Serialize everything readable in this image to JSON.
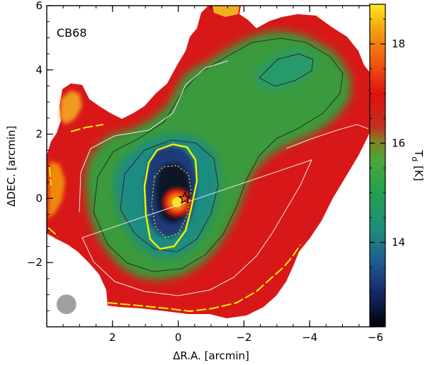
{
  "chart_data": {
    "type": "heatmap",
    "title": "",
    "annotation": "CB68",
    "xlabel": "ΔR.A. [arcmin]",
    "ylabel": "ΔDEC. [arcmin]",
    "colorbar_label": "T_d [K]",
    "colorbar_title": "T",
    "colorbar_subscript": "d",
    "colorbar_unit": "[K]",
    "xlim": [
      4.0,
      -6.0
    ],
    "ylim": [
      -4.0,
      6.0
    ],
    "x_ticks": [
      2,
      0,
      -2,
      -4,
      -6
    ],
    "x_tick_labels": [
      "2",
      "0",
      "−2",
      "−4",
      "−6"
    ],
    "y_ticks": [
      -2,
      0,
      2,
      4,
      6
    ],
    "y_tick_labels": [
      "−2",
      "0",
      "2",
      "4",
      "6"
    ],
    "colorbar_range": [
      12.3,
      18.8
    ],
    "colorbar_ticks": [
      14,
      16,
      18
    ],
    "colorbar_tick_labels": [
      "14",
      "16",
      "18"
    ],
    "colormap": [
      "#000000",
      "#1a2f6e",
      "#1e6a8a",
      "#1f8c7a",
      "#2aa050",
      "#55a830",
      "#b04020",
      "#e01010",
      "#f06010",
      "#f0a010",
      "#ffe020"
    ],
    "source_marker": {
      "x": -0.2,
      "y": 0.0,
      "symbol": "star"
    },
    "beam": {
      "x": 3.4,
      "y": -3.3,
      "diameter_arcmin": 0.6,
      "color": "#a0a0a0"
    },
    "map_samples": [
      {
        "x": -0.2,
        "y": 0.0,
        "T": 18.5
      },
      {
        "x": -0.2,
        "y": 0.7,
        "T": 12.6
      },
      {
        "x": 0.0,
        "y": 1.5,
        "T": 13.0
      },
      {
        "x": -1.0,
        "y": 1.0,
        "T": 14.0
      },
      {
        "x": -2.5,
        "y": 3.0,
        "T": 15.0
      },
      {
        "x": -3.8,
        "y": 4.2,
        "T": 14.6
      },
      {
        "x": -1.5,
        "y": 0.3,
        "T": 14.8
      },
      {
        "x": 2.5,
        "y": 0.0,
        "T": 16.5
      },
      {
        "x": 3.5,
        "y": 2.3,
        "T": 17.5
      },
      {
        "x": 1.5,
        "y": -3.0,
        "T": 16.8
      },
      {
        "x": -3.0,
        "y": -1.5,
        "T": 17.0
      },
      {
        "x": -2.0,
        "y": 5.8,
        "T": 17.5
      }
    ],
    "contours": [
      {
        "name": "dark-level-1",
        "color": "#2b2b2b"
      },
      {
        "name": "dark-level-2",
        "color": "#2b2b2b"
      },
      {
        "name": "white-level",
        "color": "#e8e8e8"
      },
      {
        "name": "yellow-level",
        "color": "#f7f000"
      }
    ]
  }
}
